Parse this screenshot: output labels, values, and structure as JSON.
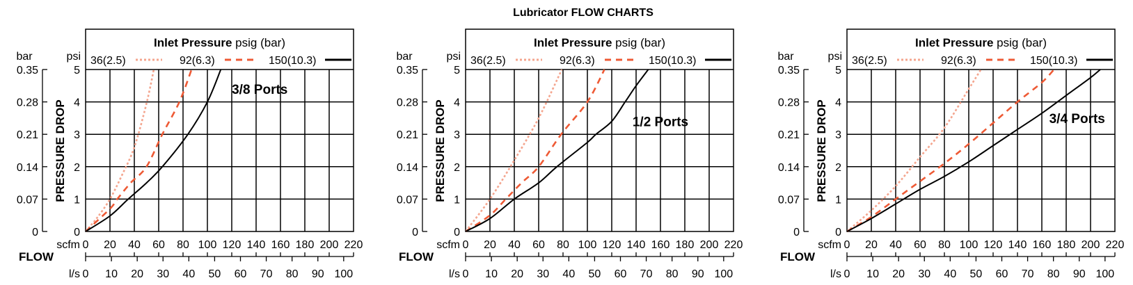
{
  "title": "Lubricator FLOW CHARTS",
  "axes": {
    "y_left_unit": "bar",
    "y_right_unit": "psi",
    "y_label": "PRESSURE DROP",
    "x_top_unit": "scfm",
    "x_bottom_unit": "l/s",
    "x_label": "FLOW",
    "psi_ticks": [
      "0",
      "1",
      "2",
      "3",
      "4",
      "5"
    ],
    "bar_ticks": [
      "0",
      "0.07",
      "0.14",
      "0.21",
      "0.28",
      "0.35"
    ],
    "scfm_ticks": [
      "0",
      "20",
      "40",
      "60",
      "80",
      "100",
      "120",
      "140",
      "160",
      "180",
      "200",
      "220"
    ],
    "ls_ticks": [
      "0",
      "10",
      "20",
      "30",
      "40",
      "50",
      "60",
      "70",
      "80",
      "90",
      "100"
    ],
    "xlim_scfm": [
      0,
      220
    ],
    "ylim_psi": [
      0,
      5
    ],
    "ylim_bar": [
      0,
      0.35
    ],
    "grid": true
  },
  "legend": {
    "title_bold": "Inlet Pressure",
    "title_rest": " psig (bar)",
    "entries": [
      "36(2.5)",
      "92(6.3)",
      "150(10.3)"
    ],
    "placement": "top"
  },
  "chart_data": [
    {
      "type": "line",
      "port_label": "3/8 Ports",
      "port_label_at": {
        "scfm": 143,
        "psi": 4.4
      },
      "series": [
        {
          "name": "36(2.5)",
          "color": "#f4a58e",
          "style": "dotted",
          "points": [
            [
              0,
              0
            ],
            [
              10,
              0.45
            ],
            [
              20,
              1.0
            ],
            [
              30,
              1.75
            ],
            [
              40,
              2.6
            ],
            [
              50,
              3.95
            ],
            [
              56,
              5
            ]
          ]
        },
        {
          "name": "92(6.3)",
          "color": "#ee5a35",
          "style": "dashed",
          "points": [
            [
              0,
              0
            ],
            [
              20,
              0.7
            ],
            [
              26,
              1.0
            ],
            [
              37,
              1.5
            ],
            [
              50,
              2.0
            ],
            [
              63,
              3.0
            ],
            [
              77,
              4.0
            ],
            [
              87,
              5
            ]
          ]
        },
        {
          "name": "150(10.3)",
          "color": "#000000",
          "style": "solid",
          "points": [
            [
              0,
              0
            ],
            [
              20,
              0.48
            ],
            [
              35,
              1.0
            ],
            [
              50,
              1.5
            ],
            [
              63,
              2.0
            ],
            [
              84,
              3.0
            ],
            [
              100,
              4.0
            ],
            [
              111,
              5
            ]
          ]
        }
      ]
    },
    {
      "type": "line",
      "port_label": "1/2 Ports",
      "port_label_at": {
        "scfm": 160,
        "psi": 3.4
      },
      "series": [
        {
          "name": "36(2.5)",
          "color": "#f4a58e",
          "style": "dotted",
          "points": [
            [
              0,
              0
            ],
            [
              20,
              1.0
            ],
            [
              40,
              2.2
            ],
            [
              60,
              3.5
            ],
            [
              79,
              5
            ]
          ]
        },
        {
          "name": "92(6.3)",
          "color": "#ee5a35",
          "style": "dashed",
          "points": [
            [
              0,
              0
            ],
            [
              20,
              0.5
            ],
            [
              33,
              1.0
            ],
            [
              46,
              1.5
            ],
            [
              60,
              2.0
            ],
            [
              78.5,
              3.0
            ],
            [
              100,
              4.0
            ],
            [
              114,
              5
            ]
          ]
        },
        {
          "name": "150(10.3)",
          "color": "#000000",
          "style": "solid",
          "points": [
            [
              0,
              0
            ],
            [
              20,
              0.4
            ],
            [
              40,
              1.0
            ],
            [
              60,
              1.5
            ],
            [
              75,
              2.0
            ],
            [
              100,
              2.75
            ],
            [
              107,
              3.0
            ],
            [
              120,
              3.4
            ],
            [
              131,
              4.0
            ],
            [
              140,
              4.5
            ],
            [
              150,
              5
            ]
          ]
        }
      ]
    },
    {
      "type": "line",
      "port_label": "3/4 Ports",
      "port_label_at": {
        "scfm": 189,
        "psi": 3.5
      },
      "series": [
        {
          "name": "36(2.5)",
          "color": "#f4a58e",
          "style": "dotted",
          "points": [
            [
              0,
              0
            ],
            [
              20,
              0.65
            ],
            [
              40,
              1.4
            ],
            [
              60,
              2.3
            ],
            [
              80,
              3.2
            ],
            [
              100,
              4.4
            ],
            [
              110,
              5
            ]
          ]
        },
        {
          "name": "92(6.3)",
          "color": "#ee5a35",
          "style": "dashed",
          "points": [
            [
              0,
              0
            ],
            [
              20,
              0.45
            ],
            [
              40,
              1.0
            ],
            [
              60,
              1.55
            ],
            [
              80,
              2.1
            ],
            [
              100,
              2.7
            ],
            [
              120,
              3.35
            ],
            [
              140,
              4.0
            ],
            [
              160,
              4.6
            ],
            [
              170,
              5
            ]
          ]
        },
        {
          "name": "150(10.3)",
          "color": "#000000",
          "style": "solid",
          "points": [
            [
              0,
              0
            ],
            [
              20,
              0.4
            ],
            [
              40,
              0.85
            ],
            [
              60,
              1.3
            ],
            [
              80,
              1.7
            ],
            [
              100,
              2.15
            ],
            [
              120,
              2.65
            ],
            [
              140,
              3.15
            ],
            [
              160,
              3.65
            ],
            [
              180,
              4.2
            ],
            [
              200,
              4.75
            ],
            [
              208,
              5
            ]
          ]
        }
      ]
    }
  ]
}
